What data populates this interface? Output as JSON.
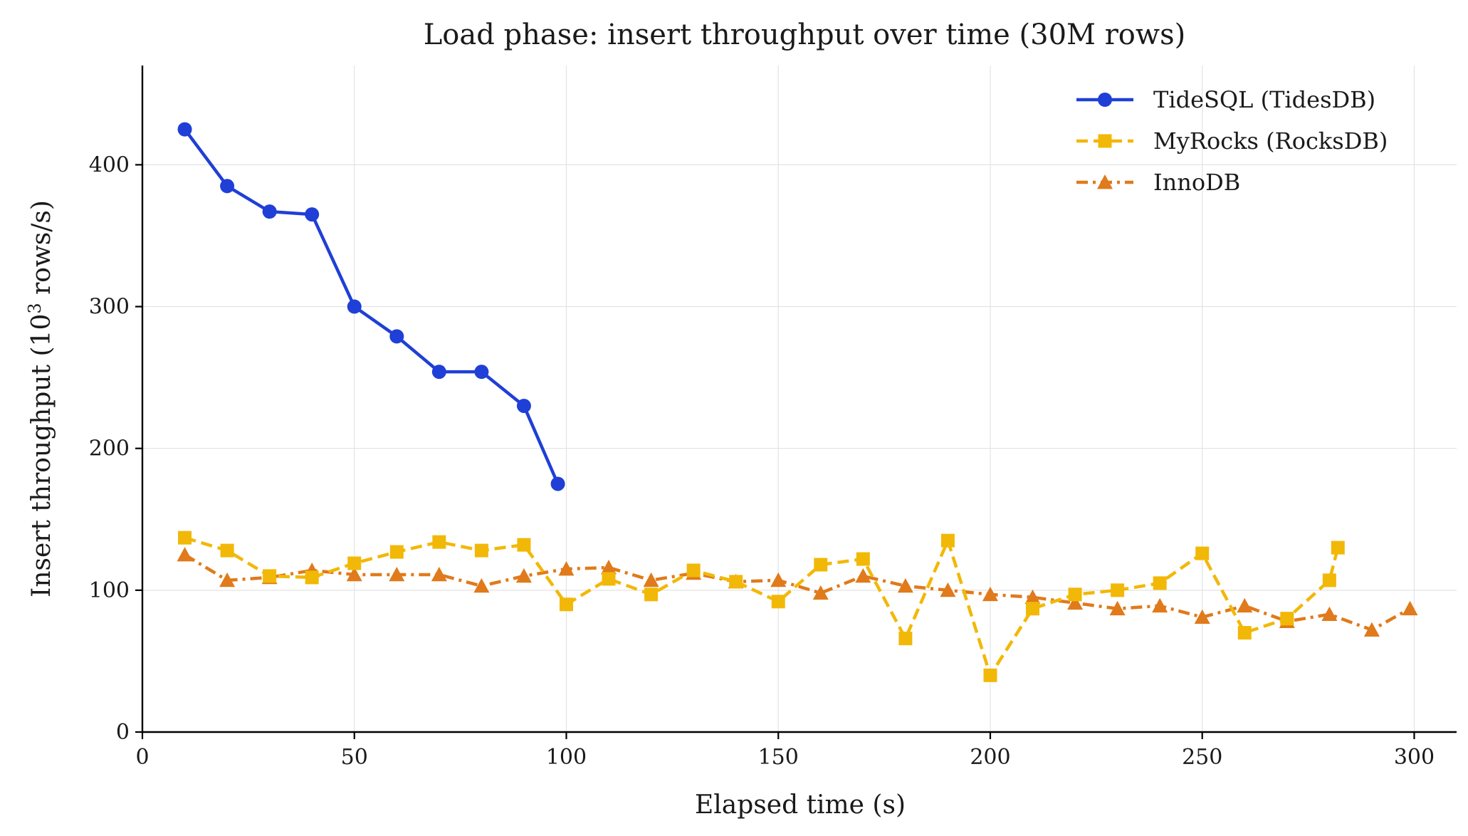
{
  "chart_data": {
    "type": "line",
    "title": "Load phase: insert throughput over time (30M rows)",
    "xlabel": "Elapsed time (s)",
    "ylabel": {
      "prefix": "Insert throughput (10",
      "sup": "3",
      "suffix": " rows/s)"
    },
    "xlim": [
      0,
      310
    ],
    "ylim": [
      0,
      470
    ],
    "xticks": [
      0,
      50,
      100,
      150,
      200,
      250,
      300
    ],
    "yticks": [
      0,
      100,
      200,
      300,
      400
    ],
    "grid": true,
    "legend_position": "top-right",
    "series": [
      {
        "name": "TideSQL (TidesDB)",
        "color": "#1f3fd6",
        "line_style": "solid",
        "marker": "circle",
        "x": [
          10,
          20,
          30,
          40,
          50,
          60,
          70,
          80,
          90,
          98
        ],
        "y": [
          425,
          385,
          367,
          365,
          300,
          279,
          254,
          254,
          230,
          175
        ]
      },
      {
        "name": "MyRocks (RocksDB)",
        "color": "#f2b807",
        "line_style": "dashed",
        "marker": "square",
        "x": [
          10,
          20,
          30,
          40,
          50,
          60,
          70,
          80,
          90,
          100,
          110,
          120,
          130,
          140,
          150,
          160,
          170,
          180,
          190,
          200,
          210,
          220,
          230,
          240,
          250,
          260,
          270,
          280,
          282
        ],
        "y": [
          137,
          128,
          110,
          109,
          119,
          127,
          134,
          128,
          132,
          90,
          108,
          97,
          114,
          106,
          92,
          118,
          122,
          66,
          135,
          40,
          87,
          97,
          100,
          105,
          126,
          70,
          80,
          107,
          130
        ]
      },
      {
        "name": "InnoDB",
        "color": "#e07a1b",
        "line_style": "dashdot",
        "marker": "triangle",
        "x": [
          10,
          20,
          30,
          40,
          50,
          60,
          70,
          80,
          90,
          100,
          110,
          120,
          130,
          140,
          150,
          160,
          170,
          180,
          190,
          200,
          210,
          220,
          230,
          240,
          250,
          260,
          270,
          280,
          290,
          299
        ],
        "y": [
          125,
          107,
          109,
          114,
          111,
          111,
          111,
          103,
          110,
          115,
          116,
          107,
          112,
          106,
          107,
          98,
          110,
          103,
          100,
          97,
          95,
          91,
          87,
          89,
          81,
          89,
          78,
          83,
          72,
          87
        ]
      }
    ]
  }
}
